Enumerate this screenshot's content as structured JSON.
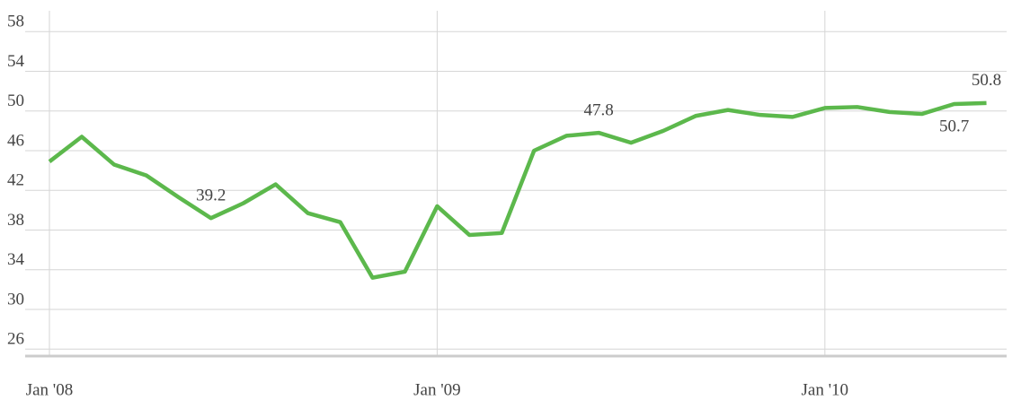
{
  "chart_data": {
    "type": "line",
    "categories": [
      "Jan '08",
      null,
      null,
      null,
      null,
      null,
      null,
      null,
      null,
      null,
      null,
      null,
      "Jan '09",
      null,
      null,
      null,
      null,
      null,
      null,
      null,
      null,
      null,
      null,
      null,
      "Jan '10",
      null,
      null,
      null,
      null,
      null
    ],
    "series": [
      {
        "color": "#5cb84c",
        "values": [
          44.9,
          47.4,
          44.6,
          43.5,
          41.3,
          39.2,
          40.7,
          42.6,
          39.7,
          38.8,
          33.2,
          33.8,
          40.4,
          37.5,
          37.7,
          46.0,
          47.5,
          47.8,
          46.8,
          48.0,
          49.5,
          50.1,
          49.6,
          49.4,
          50.3,
          50.4,
          49.9,
          49.7,
          50.7,
          50.8
        ],
        "value_labels": [
          null,
          null,
          null,
          null,
          null,
          "39.2",
          null,
          null,
          null,
          null,
          null,
          null,
          null,
          null,
          null,
          null,
          null,
          "47.8",
          null,
          null,
          null,
          null,
          null,
          null,
          null,
          null,
          null,
          null,
          "50.7",
          "50.8"
        ]
      }
    ],
    "ylim": [
      25.3,
      60.1
    ],
    "yticks": [
      26,
      30,
      34,
      38,
      42,
      46,
      50,
      54,
      58
    ],
    "grid": true
  }
}
